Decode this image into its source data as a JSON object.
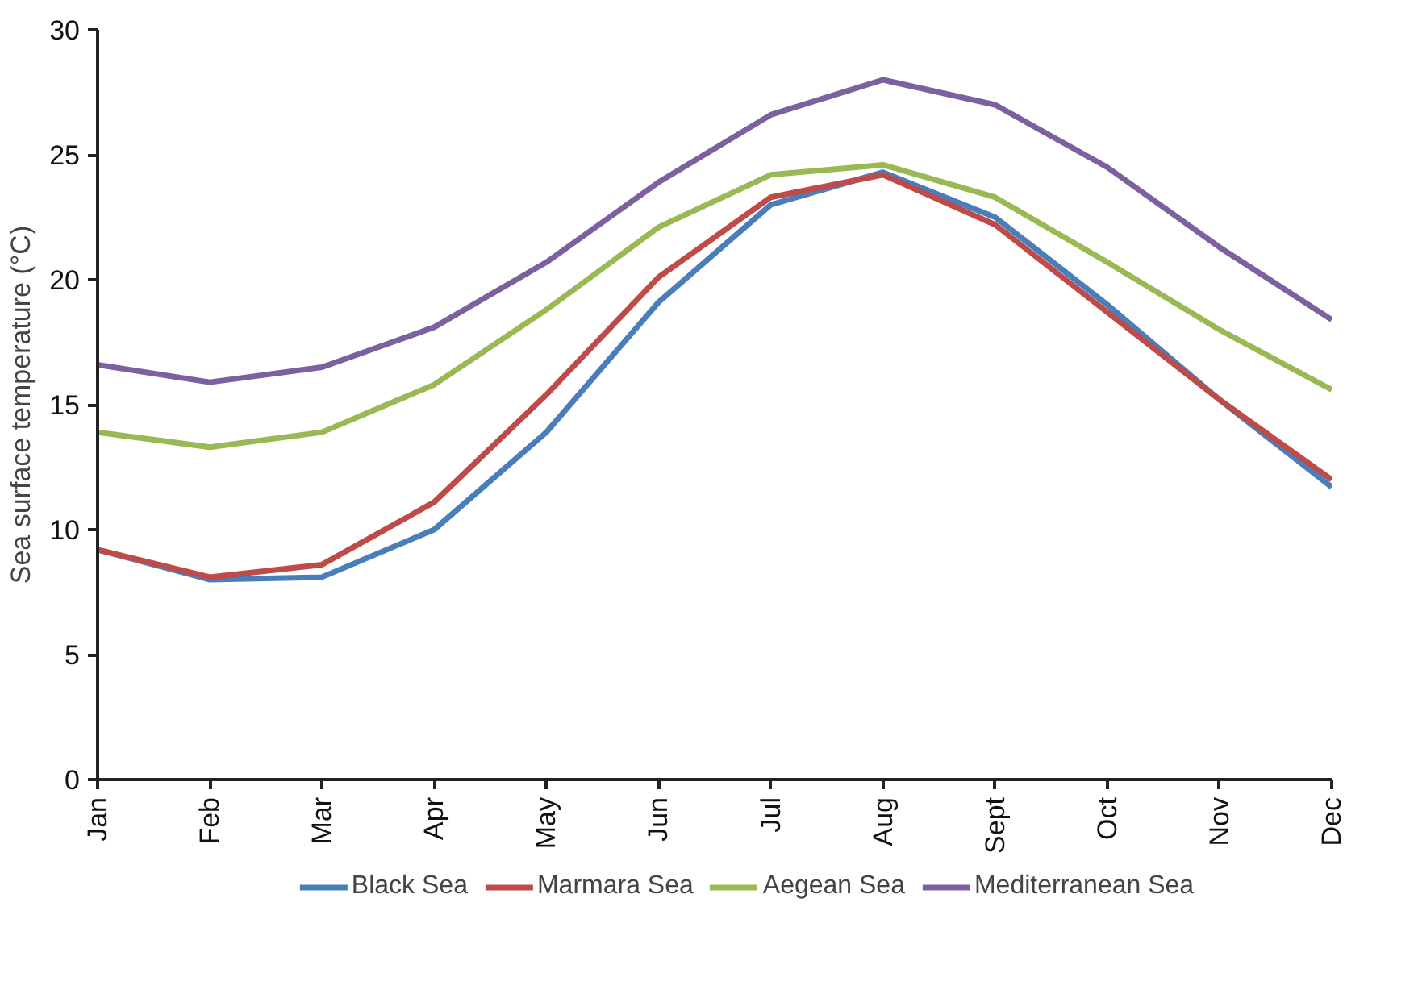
{
  "chart_data": {
    "type": "line",
    "ylabel": "Sea surface temperature (°C)",
    "categories": [
      "Jan",
      "Feb",
      "Mar",
      "Apr",
      "May",
      "Jun",
      "Jul",
      "Aug",
      "Sept",
      "Oct",
      "Nov",
      "Dec"
    ],
    "series": [
      {
        "name": "Black Sea",
        "color": "#4a7ebb",
        "values": [
          9.2,
          8.0,
          8.1,
          10.0,
          13.9,
          19.1,
          23.0,
          24.3,
          22.5,
          19.0,
          15.2,
          11.7
        ]
      },
      {
        "name": "Marmara Sea",
        "color": "#be4b48",
        "values": [
          9.2,
          8.1,
          8.6,
          11.1,
          15.4,
          20.1,
          23.3,
          24.2,
          22.2,
          18.7,
          15.2,
          12.0
        ]
      },
      {
        "name": "Aegean Sea",
        "color": "#98b954",
        "values": [
          13.9,
          13.3,
          13.9,
          15.8,
          18.8,
          22.1,
          24.2,
          24.6,
          23.3,
          20.7,
          18.0,
          15.6
        ]
      },
      {
        "name": "Mediterranean Sea",
        "color": "#7d60a0",
        "values": [
          16.6,
          15.9,
          16.5,
          18.1,
          20.7,
          23.9,
          26.6,
          28.0,
          27.0,
          24.5,
          21.3,
          18.4
        ]
      }
    ],
    "ylim": [
      0,
      30
    ],
    "yticks": [
      0,
      5,
      10,
      15,
      20,
      25,
      30
    ],
    "grid": false,
    "legend": "bottom",
    "marker": "none",
    "line_style": "solid"
  }
}
